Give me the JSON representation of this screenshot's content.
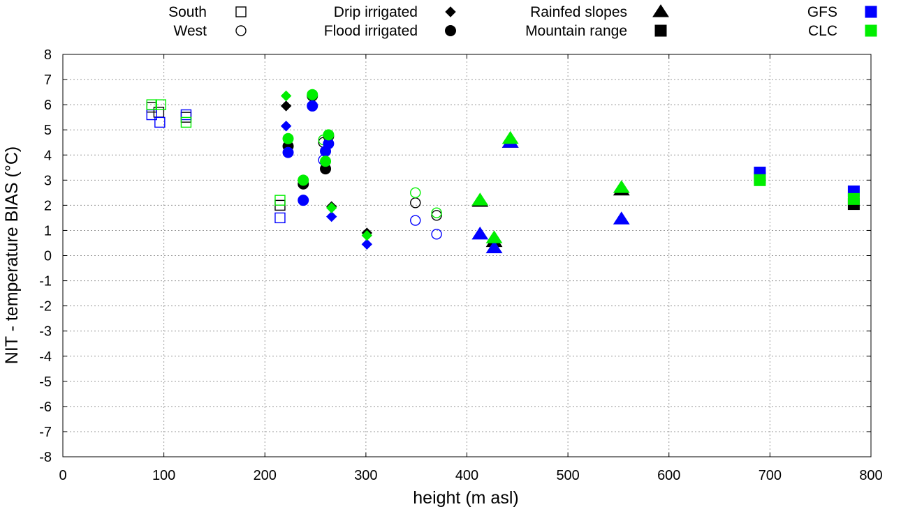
{
  "chart_data": {
    "type": "scatter",
    "title": "",
    "xlabel": "height (m asl)",
    "ylabel": "NIT - temperature BIAS (°C)",
    "xlim": [
      0,
      800
    ],
    "ylim": [
      -8,
      8
    ],
    "xticks": [
      0,
      100,
      200,
      300,
      400,
      500,
      600,
      700,
      800
    ],
    "yticks": [
      -8,
      -7,
      -6,
      -5,
      -4,
      -3,
      -2,
      -1,
      0,
      1,
      2,
      3,
      4,
      5,
      6,
      7,
      8
    ],
    "grid": true,
    "colors": {
      "black": "#000000",
      "GFS": "#0000ff",
      "CLC": "#00ee00"
    },
    "legend": {
      "placement": "top",
      "items": [
        {
          "label": "South",
          "marker": "square-open",
          "color": "#000000"
        },
        {
          "label": "West",
          "marker": "circle-open",
          "color": "#000000"
        },
        {
          "label": "Drip irrigated",
          "marker": "diamond",
          "color": "#000000"
        },
        {
          "label": "Flood irrigated",
          "marker": "circle",
          "color": "#000000"
        },
        {
          "label": "Rainfed slopes",
          "marker": "triangle",
          "color": "#000000"
        },
        {
          "label": "Mountain range",
          "marker": "square",
          "color": "#000000"
        },
        {
          "label": "GFS",
          "marker": "square",
          "color": "#0000ff"
        },
        {
          "label": "CLC",
          "marker": "square",
          "color": "#00ee00"
        }
      ]
    },
    "series": [
      {
        "name": "South - black",
        "marker": "square-open",
        "color": "#000000",
        "points": [
          [
            88,
            5.9
          ],
          [
            95,
            5.7
          ],
          [
            122,
            5.5
          ],
          [
            215,
            2.0
          ]
        ]
      },
      {
        "name": "South - GFS",
        "marker": "square-open",
        "color": "#0000ff",
        "points": [
          [
            88,
            5.6
          ],
          [
            96,
            5.3
          ],
          [
            122,
            5.6
          ],
          [
            215,
            1.5
          ]
        ]
      },
      {
        "name": "South - CLC",
        "marker": "square-open",
        "color": "#00ee00",
        "points": [
          [
            88,
            6.0
          ],
          [
            97,
            6.0
          ],
          [
            122,
            5.3
          ],
          [
            215,
            2.2
          ]
        ]
      },
      {
        "name": "West - black",
        "marker": "circle-open",
        "color": "#000000",
        "points": [
          [
            258,
            4.5
          ],
          [
            349,
            2.1
          ],
          [
            370,
            1.6
          ]
        ]
      },
      {
        "name": "West - GFS",
        "marker": "circle-open",
        "color": "#0000ff",
        "points": [
          [
            258,
            3.8
          ],
          [
            349,
            1.4
          ],
          [
            370,
            0.85
          ]
        ]
      },
      {
        "name": "West - CLC",
        "marker": "circle-open",
        "color": "#00ee00",
        "points": [
          [
            258,
            4.6
          ],
          [
            349,
            2.5
          ],
          [
            370,
            1.7
          ]
        ]
      },
      {
        "name": "Drip - black",
        "marker": "diamond",
        "color": "#000000",
        "points": [
          [
            221,
            5.95
          ],
          [
            266,
            1.95
          ],
          [
            301,
            0.9
          ]
        ]
      },
      {
        "name": "Drip - GFS",
        "marker": "diamond",
        "color": "#0000ff",
        "points": [
          [
            221,
            5.15
          ],
          [
            266,
            1.55
          ],
          [
            301,
            0.45
          ]
        ]
      },
      {
        "name": "Drip - CLC",
        "marker": "diamond",
        "color": "#00ee00",
        "points": [
          [
            221,
            6.35
          ],
          [
            266,
            1.9
          ],
          [
            301,
            0.8
          ]
        ]
      },
      {
        "name": "Flood - black",
        "marker": "circle",
        "color": "#000000",
        "points": [
          [
            223,
            4.35
          ],
          [
            238,
            2.85
          ],
          [
            247,
            6.35
          ],
          [
            260,
            3.45
          ],
          [
            263,
            4.75
          ]
        ]
      },
      {
        "name": "Flood - GFS",
        "marker": "circle",
        "color": "#0000ff",
        "points": [
          [
            223,
            4.1
          ],
          [
            238,
            2.2
          ],
          [
            247,
            5.95
          ],
          [
            260,
            4.15
          ],
          [
            263,
            4.45
          ]
        ]
      },
      {
        "name": "Flood - CLC",
        "marker": "circle",
        "color": "#00ee00",
        "points": [
          [
            223,
            4.65
          ],
          [
            238,
            3.0
          ],
          [
            247,
            6.4
          ],
          [
            260,
            3.75
          ],
          [
            263,
            4.8
          ]
        ]
      },
      {
        "name": "Rainfed - black",
        "marker": "triangle",
        "color": "#000000",
        "points": [
          [
            413,
            2.15
          ],
          [
            427,
            0.55
          ],
          [
            443,
            4.5
          ],
          [
            553,
            2.6
          ]
        ]
      },
      {
        "name": "Rainfed - GFS",
        "marker": "triangle",
        "color": "#0000ff",
        "points": [
          [
            413,
            0.85
          ],
          [
            427,
            0.3
          ],
          [
            443,
            4.5
          ],
          [
            553,
            1.45
          ]
        ]
      },
      {
        "name": "Rainfed - CLC",
        "marker": "triangle",
        "color": "#00ee00",
        "points": [
          [
            413,
            2.2
          ],
          [
            427,
            0.7
          ],
          [
            443,
            4.65
          ],
          [
            553,
            2.7
          ]
        ]
      },
      {
        "name": "Mountain - black",
        "marker": "square",
        "color": "#000000",
        "points": [
          [
            690,
            3.1
          ],
          [
            783,
            2.05
          ]
        ]
      },
      {
        "name": "Mountain - GFS",
        "marker": "square",
        "color": "#0000ff",
        "points": [
          [
            690,
            3.3
          ],
          [
            783,
            2.55
          ]
        ]
      },
      {
        "name": "Mountain - CLC",
        "marker": "square",
        "color": "#00ee00",
        "points": [
          [
            690,
            3.0
          ],
          [
            783,
            2.25
          ]
        ]
      }
    ]
  }
}
